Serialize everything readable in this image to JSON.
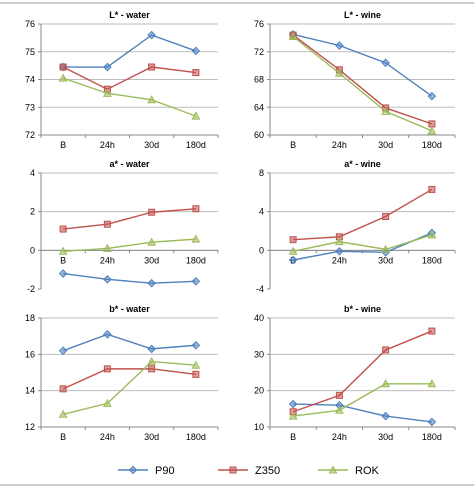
{
  "series_styles": [
    {
      "name": "P90",
      "color": "#4f81bd",
      "marker": "diamond"
    },
    {
      "name": "Z350",
      "color": "#c0504d",
      "marker": "square"
    },
    {
      "name": "ROK",
      "color": "#9bbb59",
      "marker": "triangle"
    }
  ],
  "legend": {
    "position": "bottom",
    "items": [
      "P90",
      "Z350",
      "ROK"
    ]
  },
  "chart_data": [
    {
      "type": "line",
      "title": "L* - water",
      "categories": [
        "B",
        "24h",
        "30d",
        "180d"
      ],
      "ylim": [
        72,
        76
      ],
      "yticks": [
        72,
        73,
        74,
        75,
        76
      ],
      "grid": true,
      "series": [
        {
          "name": "P90",
          "values": [
            74.45,
            74.45,
            75.6,
            75.03
          ]
        },
        {
          "name": "Z350",
          "values": [
            74.45,
            73.65,
            74.45,
            74.25
          ]
        },
        {
          "name": "ROK",
          "values": [
            74.05,
            73.5,
            73.27,
            72.68
          ]
        }
      ]
    },
    {
      "type": "line",
      "title": "L* - wine",
      "categories": [
        "B",
        "24h",
        "30d",
        "180d"
      ],
      "ylim": [
        60,
        76
      ],
      "yticks": [
        60,
        64,
        68,
        72,
        76
      ],
      "grid": true,
      "series": [
        {
          "name": "P90",
          "values": [
            74.5,
            72.9,
            70.4,
            65.6
          ]
        },
        {
          "name": "Z350",
          "values": [
            74.4,
            69.4,
            63.9,
            61.6
          ]
        },
        {
          "name": "ROK",
          "values": [
            74.2,
            68.9,
            63.4,
            60.6
          ]
        }
      ]
    },
    {
      "type": "line",
      "title": "a* - water",
      "categories": [
        "B",
        "24h",
        "30d",
        "180d"
      ],
      "ylim": [
        -2,
        4
      ],
      "yticks": [
        -2,
        0,
        2,
        4
      ],
      "grid": true,
      "series": [
        {
          "name": "P90",
          "values": [
            -1.2,
            -1.5,
            -1.7,
            -1.6
          ]
        },
        {
          "name": "Z350",
          "values": [
            1.1,
            1.35,
            1.97,
            2.15
          ]
        },
        {
          "name": "ROK",
          "values": [
            -0.05,
            0.1,
            0.42,
            0.58
          ]
        }
      ]
    },
    {
      "type": "line",
      "title": "a* - wine",
      "categories": [
        "B",
        "24h",
        "30d",
        "180d"
      ],
      "ylim": [
        -4,
        8
      ],
      "yticks": [
        -4,
        0,
        4,
        8
      ],
      "grid": true,
      "series": [
        {
          "name": "P90",
          "values": [
            -1.0,
            -0.1,
            -0.2,
            1.8
          ]
        },
        {
          "name": "Z350",
          "values": [
            1.1,
            1.4,
            3.5,
            6.3
          ]
        },
        {
          "name": "ROK",
          "values": [
            -0.1,
            0.9,
            0.1,
            1.6
          ]
        }
      ]
    },
    {
      "type": "line",
      "title": "b* - water",
      "categories": [
        "B",
        "24h",
        "30d",
        "180d"
      ],
      "ylim": [
        12,
        18
      ],
      "yticks": [
        12,
        14,
        16,
        18
      ],
      "grid": true,
      "series": [
        {
          "name": "P90",
          "values": [
            16.2,
            17.1,
            16.3,
            16.5
          ]
        },
        {
          "name": "Z350",
          "values": [
            14.1,
            15.2,
            15.2,
            14.9
          ]
        },
        {
          "name": "ROK",
          "values": [
            12.7,
            13.3,
            15.6,
            15.4
          ]
        }
      ]
    },
    {
      "type": "line",
      "title": "b* - wine",
      "categories": [
        "B",
        "24h",
        "30d",
        "180d"
      ],
      "ylim": [
        10,
        40
      ],
      "yticks": [
        10,
        20,
        30,
        40
      ],
      "grid": true,
      "series": [
        {
          "name": "P90",
          "values": [
            16.3,
            16.0,
            13.0,
            11.4
          ]
        },
        {
          "name": "Z350",
          "values": [
            14.2,
            18.7,
            31.2,
            36.4
          ]
        },
        {
          "name": "ROK",
          "values": [
            13.0,
            14.6,
            21.9,
            21.9
          ]
        }
      ]
    }
  ]
}
